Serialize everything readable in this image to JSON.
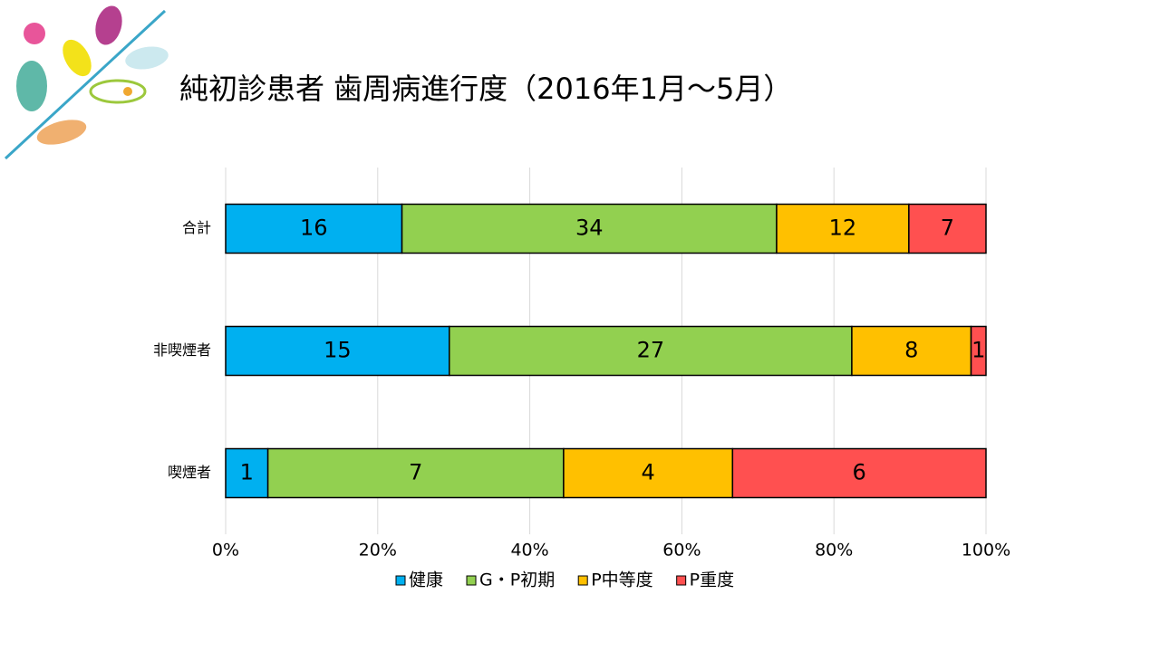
{
  "chart_data": {
    "type": "bar",
    "orientation": "horizontal",
    "stacked": "percent",
    "title": "純初診患者 歯周病進行度（2016年1月～5月）",
    "categories": [
      "合計",
      "非喫煙者",
      "喫煙者"
    ],
    "series": [
      {
        "name": "健康",
        "color": "#00b0f0",
        "values": [
          16,
          15,
          1
        ]
      },
      {
        "name": "G・P初期",
        "color": "#92d050",
        "values": [
          34,
          27,
          7
        ]
      },
      {
        "name": "P中等度",
        "color": "#ffc000",
        "values": [
          12,
          8,
          4
        ]
      },
      {
        "name": "P重度",
        "color": "#ff5050",
        "values": [
          7,
          1,
          6
        ]
      }
    ],
    "xlim": [
      0,
      100
    ],
    "xticks": [
      {
        "value": 0,
        "label": "0%"
      },
      {
        "value": 20,
        "label": "20%"
      },
      {
        "value": 40,
        "label": "40%"
      },
      {
        "value": 60,
        "label": "60%"
      },
      {
        "value": 80,
        "label": "80%"
      },
      {
        "value": 100,
        "label": "100%"
      }
    ],
    "grid": true,
    "legend": "bottom"
  }
}
